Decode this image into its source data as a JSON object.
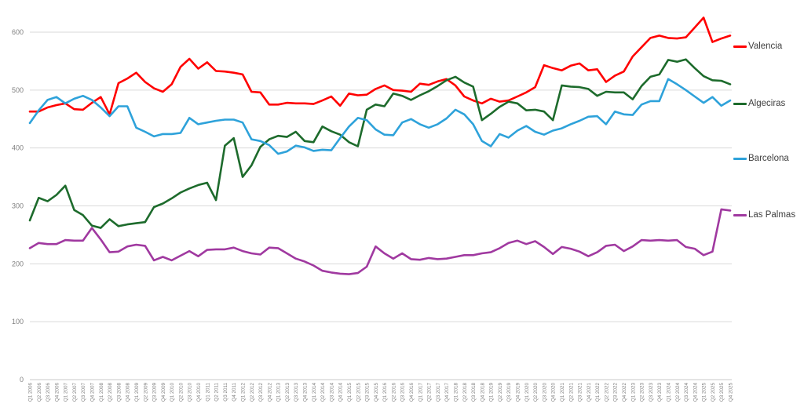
{
  "chart_data": {
    "type": "line",
    "title": "",
    "xlabel": "",
    "ylabel": "",
    "ylim": [
      0,
      650
    ],
    "yticks": [
      0,
      100,
      200,
      300,
      400,
      500,
      600
    ],
    "grid": true,
    "legend_position": "right",
    "axis_label_color": "#7f7f7f",
    "gridline_color": "#d9d9d9",
    "categories": [
      "Q1 2006",
      "Q2 2006",
      "Q3 2006",
      "Q4 2006",
      "Q1 2007",
      "Q2 2007",
      "Q3 2007",
      "Q4 2007",
      "Q1 2008",
      "Q2 2008",
      "Q3 2008",
      "Q4 2008",
      "Q1 2009",
      "Q2 2009",
      "Q3 2009",
      "Q4 2009",
      "Q1 2010",
      "Q2 2010",
      "Q3 2010",
      "Q4 2010",
      "Q1 2011",
      "Q2 2011",
      "Q3 2011",
      "Q4 2011",
      "Q1 2012",
      "Q2 2012",
      "Q3 2012",
      "Q4 2012",
      "Q1 2013",
      "Q2 2013",
      "Q3 2013",
      "Q4 2013",
      "Q1 2014",
      "Q2 2014",
      "Q3 2014",
      "Q4 2014",
      "Q1 2015",
      "Q2 2015",
      "Q3 2015",
      "Q4 2015",
      "Q1 2016",
      "Q2 2016",
      "Q3 2016",
      "Q4 2016",
      "Q1 2017",
      "Q2 2017",
      "Q3 2017",
      "Q4 2017",
      "Q1 2018",
      "Q2 2018",
      "Q3 2018",
      "Q4 2018",
      "Q1 2019",
      "Q2 2019",
      "Q3 2019",
      "Q4 2019",
      "Q1 2020",
      "Q2 2020",
      "Q3 2020",
      "Q4 2020",
      "Q1 2021",
      "Q2 2021",
      "Q3 2021",
      "Q4 2021",
      "Q1 2022",
      "Q2 2022",
      "Q3 2022",
      "Q4 2022",
      "Q1 2023",
      "Q2 2023",
      "Q3 2023",
      "Q4 2023",
      "Q1 2024",
      "Q2 2024",
      "Q3 2024",
      "Q4 2024",
      "Q1 2025",
      "Q2 2025",
      "Q3 2025",
      "Q4 2025"
    ],
    "series": [
      {
        "name": "Valencia",
        "color": "#ff0000",
        "values": [
          463,
          463,
          470,
          474,
          477,
          467,
          466,
          478,
          488,
          458,
          512,
          520,
          530,
          514,
          503,
          497,
          510,
          540,
          554,
          537,
          548,
          533,
          532,
          530,
          527,
          497,
          496,
          475,
          475,
          478,
          477,
          477,
          476,
          482,
          489,
          473,
          494,
          491,
          492,
          502,
          508,
          500,
          499,
          497,
          511,
          509,
          515,
          519,
          508,
          489,
          482,
          477,
          485,
          480,
          482,
          489,
          496,
          505,
          543,
          538,
          534,
          542,
          546,
          534,
          536,
          514,
          525,
          532,
          558,
          574,
          590,
          594,
          590,
          589,
          591,
          608,
          625,
          583,
          589,
          594
        ]
      },
      {
        "name": "Algeciras",
        "color": "#1d6b2c",
        "values": [
          275,
          314,
          308,
          319,
          335,
          293,
          284,
          266,
          262,
          277,
          265,
          268,
          270,
          272,
          298,
          304,
          313,
          323,
          330,
          336,
          340,
          310,
          404,
          417,
          350,
          370,
          402,
          415,
          421,
          419,
          428,
          412,
          410,
          437,
          429,
          423,
          410,
          403,
          466,
          475,
          472,
          494,
          490,
          483,
          491,
          498,
          507,
          517,
          523,
          513,
          506,
          448,
          459,
          471,
          480,
          477,
          465,
          466,
          463,
          448,
          508,
          506,
          505,
          502,
          490,
          497,
          496,
          496,
          484,
          507,
          523,
          527,
          552,
          549,
          553,
          538,
          524,
          517,
          516,
          510
        ]
      },
      {
        "name": "Barcelona",
        "color": "#2ea2da",
        "values": [
          443,
          465,
          483,
          488,
          477,
          485,
          490,
          483,
          470,
          455,
          472,
          472,
          435,
          428,
          420,
          424,
          424,
          426,
          452,
          441,
          444,
          447,
          449,
          449,
          444,
          415,
          412,
          405,
          390,
          394,
          404,
          401,
          395,
          397,
          396,
          417,
          437,
          452,
          448,
          432,
          423,
          422,
          444,
          450,
          441,
          435,
          441,
          451,
          466,
          458,
          441,
          412,
          403,
          424,
          418,
          430,
          438,
          428,
          423,
          430,
          434,
          441,
          447,
          454,
          455,
          441,
          463,
          458,
          457,
          475,
          481,
          481,
          519,
          510,
          500,
          489,
          478,
          488,
          473,
          482
        ]
      },
      {
        "name": "Las Palmas",
        "color": "#a039a0",
        "values": [
          227,
          236,
          234,
          234,
          241,
          240,
          240,
          262,
          242,
          220,
          221,
          230,
          233,
          231,
          206,
          212,
          206,
          214,
          222,
          213,
          224,
          225,
          225,
          228,
          222,
          218,
          216,
          228,
          227,
          218,
          209,
          204,
          197,
          188,
          185,
          183,
          182,
          184,
          195,
          230,
          218,
          209,
          218,
          208,
          207,
          210,
          208,
          209,
          212,
          215,
          215,
          218,
          220,
          227,
          236,
          240,
          234,
          239,
          229,
          217,
          229,
          226,
          221,
          213,
          220,
          231,
          233,
          222,
          230,
          241,
          240,
          241,
          240,
          241,
          229,
          226,
          215,
          221,
          294,
          292
        ]
      }
    ]
  }
}
